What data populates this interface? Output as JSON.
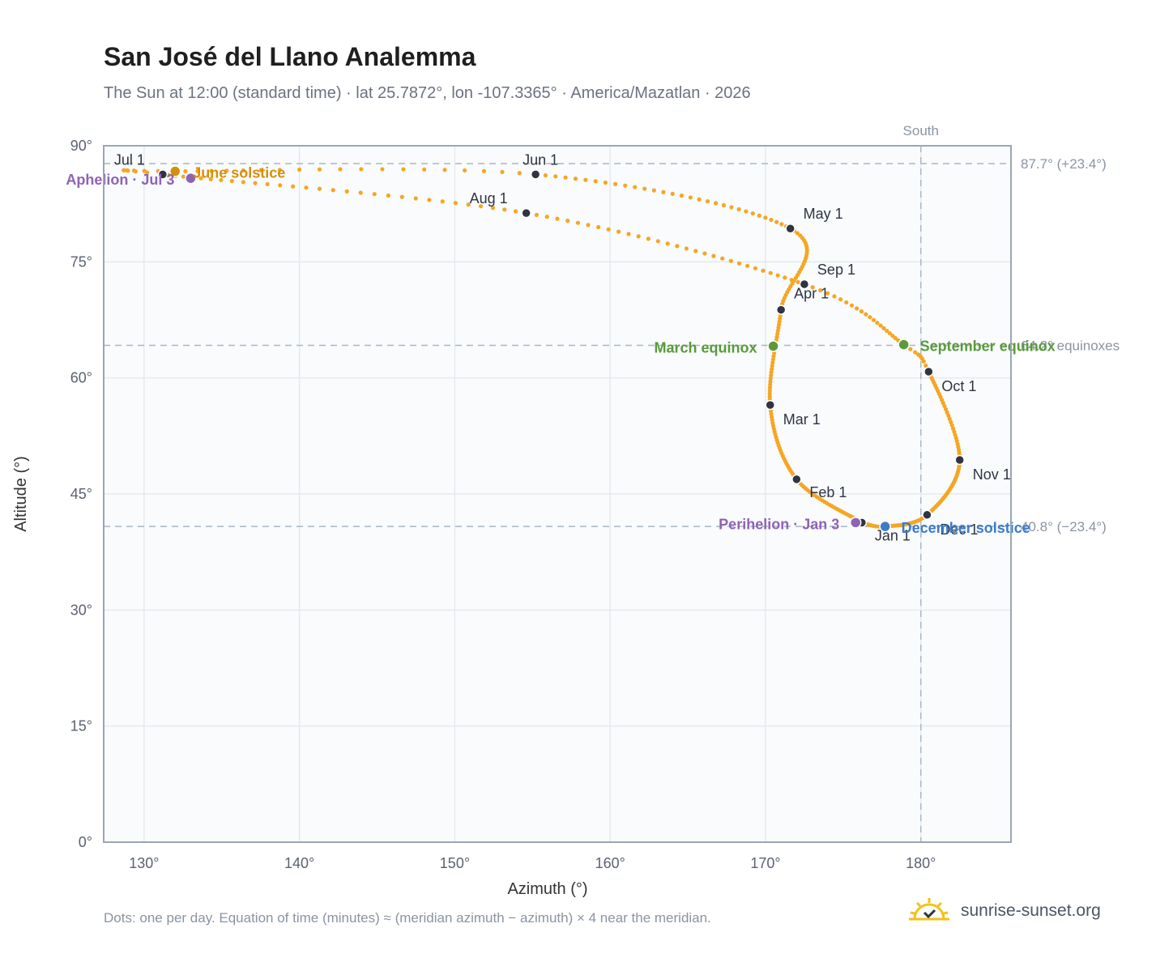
{
  "header": {
    "title": "San José del Llano Analemma",
    "subtitle": "The Sun at 12:00 (standard time) · lat 25.7872°, lon -107.3365° · America/Mazatlan · 2026"
  },
  "footer": {
    "note": "Dots: one per day. Equation of time (minutes) ≈ (meridian azimuth − azimuth) × 4 near the meridian.",
    "brand": "sunrise-sunset.org"
  },
  "colors": {
    "curve": "#f5a623",
    "month_marker": "#2f3440",
    "equinox": "#5a9a3a",
    "june_solstice": "#d4900a",
    "december_solstice": "#3b7cc9",
    "apsis": "#8e63b5",
    "grid": "#e6eaef",
    "reference_line": "#a9b7c6",
    "plot_bg": "#f9fbfd",
    "frame": "#9aa6b5"
  },
  "chart_data": {
    "type": "scatter",
    "xlabel": "Azimuth (°)",
    "ylabel": "Altitude (°)",
    "xlim": [
      127.4,
      185.8
    ],
    "ylim": [
      0,
      90
    ],
    "xticks": [
      130,
      140,
      150,
      160,
      170,
      180
    ],
    "yticks": [
      0,
      15,
      30,
      45,
      60,
      75,
      90
    ],
    "xtick_labels": [
      "130°",
      "140°",
      "150°",
      "160°",
      "170°",
      "180°"
    ],
    "ytick_labels": [
      "0°",
      "15°",
      "30°",
      "45°",
      "60°",
      "75°",
      "90°"
    ],
    "grid": true,
    "daily_path": {
      "doy": [
        1,
        32,
        60,
        91,
        121,
        152,
        172,
        182,
        213,
        244,
        266,
        274,
        305,
        335,
        355,
        365
      ],
      "azimuth": [
        176.2,
        172.0,
        170.3,
        171.0,
        171.6,
        155.2,
        132.0,
        131.2,
        154.6,
        172.5,
        178.9,
        180.5,
        182.5,
        180.4,
        177.7,
        176.2
      ],
      "altitude": [
        41.3,
        46.9,
        56.5,
        68.8,
        79.3,
        86.3,
        86.7,
        86.3,
        81.3,
        72.1,
        64.3,
        60.8,
        49.4,
        42.3,
        40.8,
        41.3
      ]
    },
    "month_markers": [
      {
        "label": "Jan 1",
        "azimuth": 176.2,
        "altitude": 41.3
      },
      {
        "label": "Feb 1",
        "azimuth": 172.0,
        "altitude": 46.9
      },
      {
        "label": "Mar 1",
        "azimuth": 170.3,
        "altitude": 56.5
      },
      {
        "label": "Apr 1",
        "azimuth": 171.0,
        "altitude": 68.8
      },
      {
        "label": "May 1",
        "azimuth": 171.6,
        "altitude": 79.3
      },
      {
        "label": "Jun 1",
        "azimuth": 155.2,
        "altitude": 86.3
      },
      {
        "label": "Jul 1",
        "azimuth": 131.2,
        "altitude": 86.3
      },
      {
        "label": "Aug 1",
        "azimuth": 154.6,
        "altitude": 81.3
      },
      {
        "label": "Sep 1",
        "azimuth": 172.5,
        "altitude": 72.1
      },
      {
        "label": "Oct 1",
        "azimuth": 180.5,
        "altitude": 60.8
      },
      {
        "label": "Nov 1",
        "azimuth": 182.5,
        "altitude": 49.4
      },
      {
        "label": "Dec 1",
        "azimuth": 180.4,
        "altitude": 42.3
      }
    ],
    "events": [
      {
        "label": "March equinox",
        "azimuth": 170.5,
        "altitude": 64.1,
        "color_key": "equinox"
      },
      {
        "label": "September equinox",
        "azimuth": 178.9,
        "altitude": 64.3,
        "color_key": "equinox"
      },
      {
        "label": "June solstice",
        "azimuth": 132.0,
        "altitude": 86.7,
        "color_key": "june_solstice"
      },
      {
        "label": "December solstice",
        "azimuth": 177.7,
        "altitude": 40.8,
        "color_key": "december_solstice"
      },
      {
        "label": "Perihelion · Jan 3",
        "azimuth": 175.8,
        "altitude": 41.3,
        "color_key": "apsis"
      },
      {
        "label": "Aphelion · Jul 3",
        "azimuth": 133.0,
        "altitude": 85.8,
        "color_key": "apsis"
      }
    ],
    "reference_lines": {
      "horizontal": [
        {
          "altitude": 87.7,
          "label": "87.7° (+23.4°)"
        },
        {
          "altitude": 64.2,
          "label": "64.2° equinoxes"
        },
        {
          "altitude": 40.8,
          "label": "40.8° (−23.4°)"
        }
      ],
      "vertical": [
        {
          "azimuth": 180,
          "label": "South"
        }
      ]
    }
  }
}
